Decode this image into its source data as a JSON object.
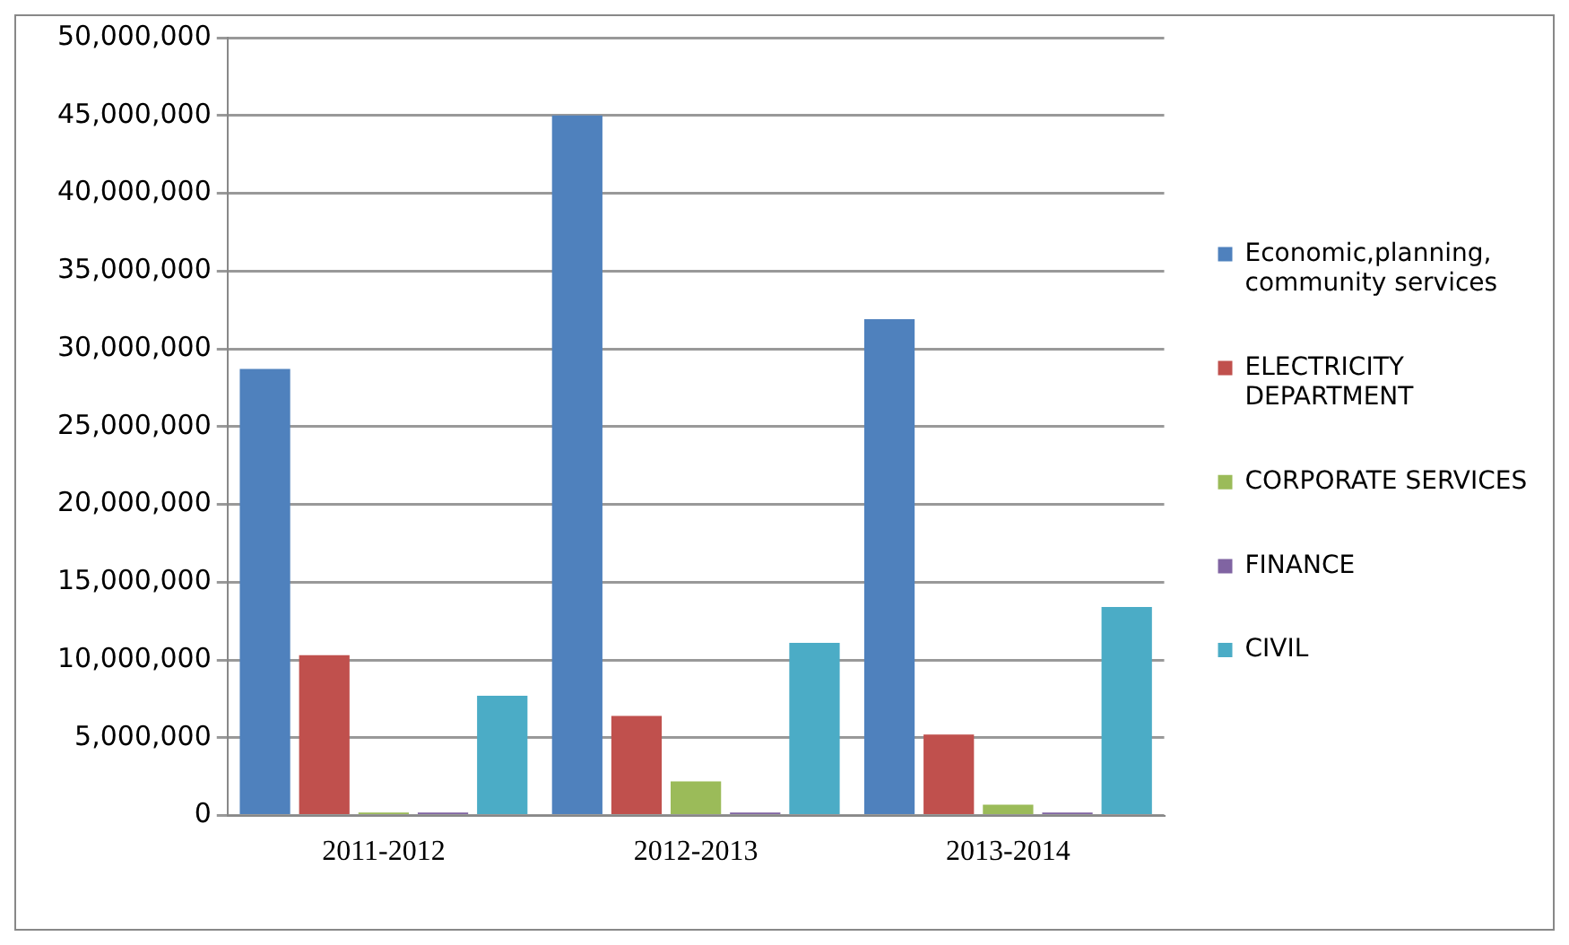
{
  "chart_data": {
    "type": "bar",
    "categories": [
      "2011-2012",
      "2012-2013",
      "2013-2014"
    ],
    "series": [
      {
        "name": "Economic,planning, community services",
        "color": "#4f81bd",
        "values": [
          28700000,
          45000000,
          31900000
        ]
      },
      {
        "name": "ELECTRICITY DEPARTMENT",
        "color": "#c0504d",
        "values": [
          10300000,
          6400000,
          5200000
        ]
      },
      {
        "name": "CORPORATE SERVICES",
        "color": "#9bbb59",
        "values": [
          200000,
          2200000,
          700000
        ]
      },
      {
        "name": "FINANCE",
        "color": "#8064a2",
        "values": [
          200000,
          200000,
          200000
        ]
      },
      {
        "name": "CIVIL",
        "color": "#4bacc6",
        "values": [
          7700000,
          11100000,
          13400000
        ]
      }
    ],
    "ylim": [
      0,
      50000000
    ],
    "yticks": [
      0,
      {
        "value": 5000000,
        "label": "5,000,000"
      },
      {
        "value": 10000000,
        "label": "10,000,000"
      },
      {
        "value": 15000000,
        "label": "15,000,000"
      },
      {
        "value": 20000000,
        "label": "20,000,000"
      },
      {
        "value": 25000000,
        "label": "25,000,000"
      },
      {
        "value": 30000000,
        "label": "30,000,000"
      },
      {
        "value": 35000000,
        "label": "35,000,000"
      },
      {
        "value": 40000000,
        "label": "40,000,000"
      },
      {
        "value": 45000000,
        "label": "45,000,000"
      },
      {
        "value": 50000000,
        "label": "50,000,000"
      }
    ],
    "grid": "y",
    "legend": "right"
  }
}
